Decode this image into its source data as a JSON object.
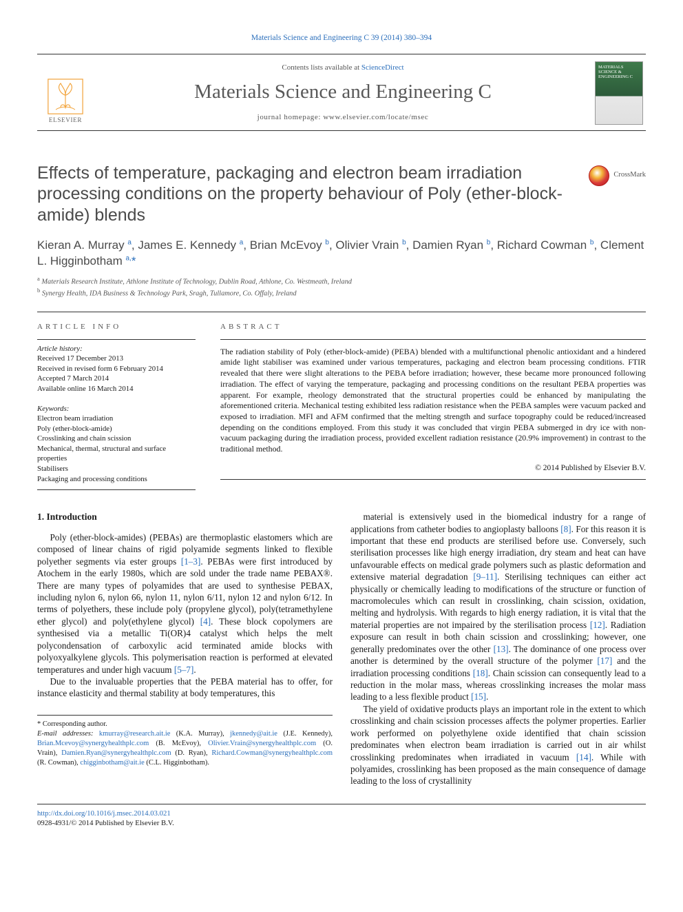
{
  "top_link": {
    "prefix": "Materials Science and Engineering C 39 (2014) 380–394"
  },
  "header": {
    "contents_prefix": "Contents lists available at ",
    "contents_link": "ScienceDirect",
    "journal": "Materials Science and Engineering C",
    "homepage_prefix": "journal homepage: ",
    "homepage": "www.elsevier.com/locate/msec",
    "publisher": "ELSEVIER",
    "cover_text": "MATERIALS SCIENCE & ENGINEERING C"
  },
  "crossmark": "CrossMark",
  "title": "Effects of temperature, packaging and electron beam irradiation processing conditions on the property behaviour of Poly (ether-block-amide) blends",
  "authors_html": "Kieran A. Murray <sup>a</sup>, James E. Kennedy <sup>a</sup>, Brian McEvoy <sup>b</sup>, Olivier Vrain <sup>b</sup>, Damien Ryan <sup>b</sup>, Richard Cowman <sup>b</sup>, Clement L. Higginbotham <sup>a,</sup><span class='star'>*</span>",
  "affiliations": [
    "a  Materials Research Institute, Athlone Institute of Technology, Dublin Road, Athlone, Co. Westmeath, Ireland",
    "b  Synergy Health, IDA Business & Technology Park, Sragh, Tullamore, Co. Offaly, Ireland"
  ],
  "article_info_label": "article info",
  "abstract_label": "abstract",
  "history": {
    "label": "Article history:",
    "items": [
      "Received 17 December 2013",
      "Received in revised form 6 February 2014",
      "Accepted 7 March 2014",
      "Available online 16 March 2014"
    ]
  },
  "keywords": {
    "label": "Keywords:",
    "items": [
      "Electron beam irradiation",
      "Poly (ether-block-amide)",
      "Crosslinking and chain scission",
      "Mechanical, thermal, structural and surface properties",
      "Stabilisers",
      "Packaging and processing conditions"
    ]
  },
  "abstract": "The radiation stability of Poly (ether-block-amide) (PEBA) blended with a multifunctional phenolic antioxidant and a hindered amide light stabiliser was examined under various temperatures, packaging and electron beam processing conditions. FTIR revealed that there were slight alterations to the PEBA before irradiation; however, these became more pronounced following irradiation. The effect of varying the temperature, packaging and processing conditions on the resultant PEBA properties was apparent. For example, rheology demonstrated that the structural properties could be enhanced by manipulating the aforementioned criteria. Mechanical testing exhibited less radiation resistance when the PEBA samples were vacuum packed and exposed to irradiation. MFI and AFM confirmed that the melting strength and surface topography could be reduced/increased depending on the conditions employed. From this study it was concluded that virgin PEBA submerged in dry ice with non-vacuum packaging during the irradiation process, provided excellent radiation resistance (20.9% improvement) in contrast to the traditional method.",
  "copyright": "© 2014 Published by Elsevier B.V.",
  "intro_heading": "1. Introduction",
  "intro_p1": "Poly (ether-block-amides) (PEBAs) are thermoplastic elastomers which are composed of linear chains of rigid polyamide segments linked to flexible polyether segments via ester groups [1–3]. PEBAs were first introduced by Atochem in the early 1980s, which are sold under the trade name PEBAX®. There are many types of polyamides that are used to synthesise PEBAX, including nylon 6, nylon 66, nylon 11, nylon 6/11, nylon 12 and nylon 6/12. In terms of polyethers, these include poly (propylene glycol), poly(tetramethylene ether glycol) and poly(ethylene glycol) [4]. These block copolymers are synthesised via a metallic Ti(OR)4 catalyst which helps the melt polycondensation of carboxylic acid terminated amide blocks with polyoxyalkylene glycols. This polymerisation reaction is performed at elevated temperatures and under high vacuum [5–7].",
  "intro_p2": "Due to the invaluable properties that the PEBA material has to offer, for instance elasticity and thermal stability at body temperatures, this",
  "col2_p1": "material is extensively used in the biomedical industry for a range of applications from catheter bodies to angioplasty balloons [8]. For this reason it is important that these end products are sterilised before use. Conversely, such sterilisation processes like high energy irradiation, dry steam and heat can have unfavourable effects on medical grade polymers such as plastic deformation and extensive material degradation [9–11]. Sterilising techniques can either act physically or chemically leading to modifications of the structure or function of macromolecules which can result in crosslinking, chain scission, oxidation, melting and hydrolysis. With regards to high energy radiation, it is vital that the material properties are not impaired by the sterilisation process [12]. Radiation exposure can result in both chain scission and crosslinking; however, one generally predominates over the other [13]. The dominance of one process over another is determined by the overall structure of the polymer [17] and the irradiation processing conditions [18]. Chain scission can consequently lead to a reduction in the molar mass, whereas crosslinking increases the molar mass leading to a less flexible product [15].",
  "col2_p2": "The yield of oxidative products plays an important role in the extent to which crosslinking and chain scission processes affects the polymer properties. Earlier work performed on polyethylene oxide identified that chain scission predominates when electron beam irradiation is carried out in air whilst crosslinking predominates when irradiated in vacuum [14]. While with polyamides, crosslinking has been proposed as the main consequence of damage leading to the loss of crystallinity",
  "footnotes": {
    "corr": "*  Corresponding author.",
    "email_label": "E-mail addresses:",
    "emails": [
      {
        "addr": "kmurray@research.ait.ie",
        "who": "(K.A. Murray),"
      },
      {
        "addr": "jkennedy@ait.ie",
        "who": "(J.E. Kennedy),"
      },
      {
        "addr": "Brian.Mcevoy@synergyhealthplc.com",
        "who": "(B. McEvoy),"
      },
      {
        "addr": "Olivier.Vrain@synergyhealthplc.com",
        "who": "(O. Vrain),"
      },
      {
        "addr": "Damien.Ryan@synergyhealthplc.com",
        "who": "(D. Ryan),"
      },
      {
        "addr": "Richard.Cowman@synergyhealthplc.com",
        "who": "(R. Cowman),"
      },
      {
        "addr": "chigginbotham@ait.ie",
        "who": "(C.L. Higginbotham)."
      }
    ]
  },
  "footer": {
    "doi": "http://dx.doi.org/10.1016/j.msec.2014.03.021",
    "issn": "0928-4931/© 2014 Published by Elsevier B.V."
  },
  "colors": {
    "link": "#2a6ebb",
    "text": "#1a1a1a",
    "heading_grey": "#4a4a4a",
    "rule": "#333333"
  }
}
